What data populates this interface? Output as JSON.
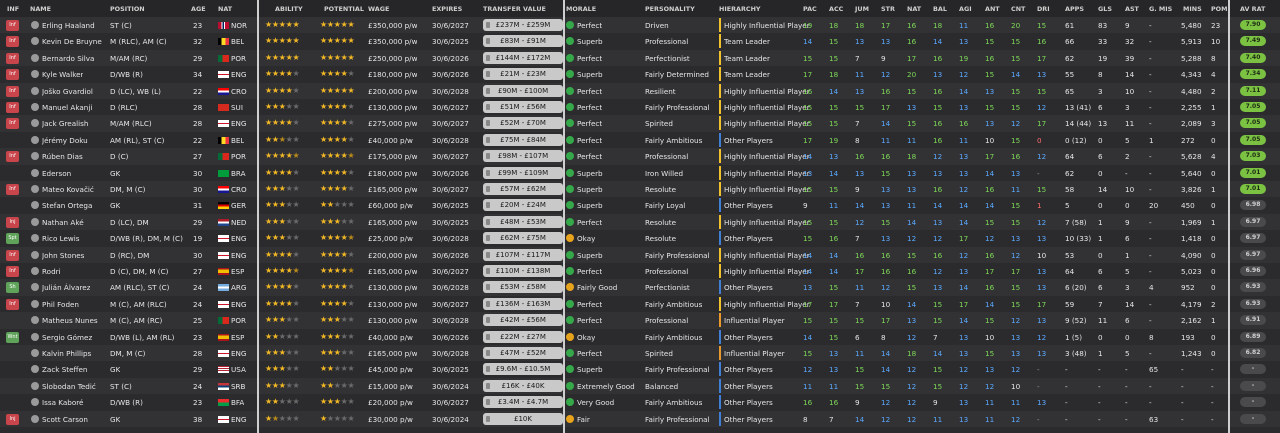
{
  "headers": {
    "inf": "INF",
    "name": "NAME",
    "position": "POSITION",
    "age": "AGE",
    "nat": "NAT",
    "ability": "ABILITY",
    "potential": "POTENTIAL",
    "wage": "WAGE",
    "expires": "EXPIRES",
    "transfer_value": "TRANSFER VALUE",
    "morale": "MORALE",
    "personality": "PERSONALITY",
    "hierarchy": "HIERARCHY",
    "pac": "PAC",
    "acc": "ACC",
    "jum": "JUM",
    "str": "STR",
    "nat2": "NAT",
    "bal": "BAL",
    "agi": "AGI",
    "ant": "ANT",
    "cnt": "CNT",
    "dri": "DRI",
    "apps": "APPS",
    "gls": "GLS",
    "ast": "AST",
    "gmis": "G. MIS",
    "mins": "MINS",
    "pom": "POM",
    "avrat": "AV RAT"
  },
  "players": [
    {
      "inf": "Inf",
      "name": "Erling Haaland",
      "position": "ST (C)",
      "age": "23",
      "nat": "NOR",
      "ability": 5,
      "potential": 5,
      "wage": "£350,000 p/w",
      "expires": "30/6/2027",
      "value": "£237M - £259M",
      "morale": "Perfect",
      "personality": "Driven",
      "hierarchy": "Highly Influential Player",
      "pac": "19",
      "acc": "18",
      "jum": "18",
      "str": "17",
      "nat2": "16",
      "bal": "18",
      "agi": "11",
      "ant": "16",
      "cnt": "20",
      "dri": "15",
      "apps": "61",
      "gls": "83",
      "ast": "9",
      "gmis": "-",
      "mins": "5,480",
      "pom": "23",
      "avrat": "7.90"
    },
    {
      "inf": "Inf",
      "name": "Kevin De Bruyne",
      "position": "M (RLC), AM (C)",
      "age": "32",
      "nat": "BEL",
      "ability": 5,
      "potential": 5,
      "wage": "£350,000 p/w",
      "expires": "30/6/2025",
      "value": "£83M - £91M",
      "morale": "Superb",
      "personality": "Professional",
      "hierarchy": "Team Leader",
      "pac": "14",
      "acc": "15",
      "jum": "13",
      "str": "13",
      "nat2": "16",
      "bal": "14",
      "agi": "13",
      "ant": "15",
      "cnt": "15",
      "dri": "16",
      "apps": "66",
      "gls": "33",
      "ast": "32",
      "gmis": "-",
      "mins": "5,913",
      "pom": "10",
      "avrat": "7.49"
    },
    {
      "inf": "Inf",
      "name": "Bernardo Silva",
      "position": "M/AM (RC)",
      "age": "29",
      "nat": "POR",
      "ability": 5,
      "potential": 5,
      "wage": "£250,000 p/w",
      "expires": "30/6/2026",
      "value": "£144M - £172M",
      "morale": "Perfect",
      "personality": "Perfectionist",
      "hierarchy": "Team Leader",
      "pac": "15",
      "acc": "15",
      "jum": "7",
      "str": "9",
      "nat2": "17",
      "bal": "16",
      "agi": "19",
      "ant": "16",
      "cnt": "15",
      "dri": "17",
      "apps": "62",
      "gls": "19",
      "ast": "39",
      "gmis": "-",
      "mins": "5,288",
      "pom": "8",
      "avrat": "7.40"
    },
    {
      "inf": "Inf",
      "name": "Kyle Walker",
      "position": "D/WB (R)",
      "age": "34",
      "nat": "ENG",
      "ability": 4,
      "potential": 4,
      "wage": "£180,000 p/w",
      "expires": "30/6/2026",
      "value": "£21M - £23M",
      "morale": "Superb",
      "personality": "Fairly Determined",
      "hierarchy": "Team Leader",
      "pac": "17",
      "acc": "18",
      "jum": "11",
      "str": "12",
      "nat2": "20",
      "bal": "13",
      "agi": "12",
      "ant": "15",
      "cnt": "14",
      "dri": "13",
      "apps": "55",
      "gls": "8",
      "ast": "14",
      "gmis": "-",
      "mins": "4,343",
      "pom": "4",
      "avrat": "7.34"
    },
    {
      "inf": "Inf",
      "name": "Joško Gvardiol",
      "position": "D (LC), WB (L)",
      "age": "22",
      "nat": "CRO",
      "ability": 4,
      "potential": 5,
      "wage": "£200,000 p/w",
      "expires": "30/6/2028",
      "value": "£90M - £100M",
      "morale": "Perfect",
      "personality": "Resilient",
      "hierarchy": "Highly Influential Player",
      "pac": "16",
      "acc": "14",
      "jum": "13",
      "str": "16",
      "nat2": "15",
      "bal": "16",
      "agi": "14",
      "ant": "13",
      "cnt": "15",
      "dri": "15",
      "apps": "65",
      "gls": "3",
      "ast": "10",
      "gmis": "-",
      "mins": "4,480",
      "pom": "2",
      "avrat": "7.11"
    },
    {
      "inf": "Inf",
      "name": "Manuel Akanji",
      "position": "D (RLC)",
      "age": "28",
      "nat": "SUI",
      "ability": 3,
      "potential": 4,
      "wage": "£130,000 p/w",
      "expires": "30/6/2027",
      "value": "£51M - £56M",
      "morale": "Perfect",
      "personality": "Fairly Professional",
      "hierarchy": "Highly Influential Player",
      "pac": "15",
      "acc": "15",
      "jum": "15",
      "str": "17",
      "nat2": "13",
      "bal": "15",
      "agi": "13",
      "ant": "15",
      "cnt": "15",
      "dri": "12",
      "apps": "13 (41)",
      "gls": "6",
      "ast": "3",
      "gmis": "-",
      "mins": "2,255",
      "pom": "1",
      "avrat": "7.05"
    },
    {
      "inf": "Inf",
      "name": "Jack Grealish",
      "position": "M/AM (RLC)",
      "age": "28",
      "nat": "ENG",
      "ability": 4,
      "potential": 4,
      "wage": "£275,000 p/w",
      "expires": "30/6/2027",
      "value": "£52M - £70M",
      "morale": "Perfect",
      "personality": "Spirited",
      "hierarchy": "Highly Influential Player",
      "pac": "15",
      "acc": "15",
      "jum": "7",
      "str": "14",
      "nat2": "15",
      "bal": "16",
      "agi": "16",
      "ant": "13",
      "cnt": "12",
      "dri": "17",
      "apps": "14 (44)",
      "gls": "13",
      "ast": "11",
      "gmis": "-",
      "mins": "2,089",
      "pom": "3",
      "avrat": "7.05"
    },
    {
      "inf": "",
      "name": "Jérémy Doku",
      "position": "AM (RL), ST (C)",
      "age": "22",
      "nat": "BEL",
      "ability": 2.5,
      "potential": 4,
      "wage": "£40,000 p/w",
      "expires": "30/6/2028",
      "value": "£75M - £84M",
      "morale": "Perfect",
      "personality": "Fairly Ambitious",
      "hierarchy": "Other Players",
      "pac": "17",
      "acc": "19",
      "jum": "8",
      "str": "11",
      "nat2": "11",
      "bal": "16",
      "agi": "11",
      "ant": "10",
      "cnt": "15",
      "dri": "0",
      "apps": "0 (12)",
      "gls": "0",
      "ast": "5",
      "gmis": "1",
      "mins": "272",
      "pom": "0",
      "avrat": "7.05"
    },
    {
      "inf": "Inf",
      "name": "Rúben Dias",
      "position": "D (C)",
      "age": "27",
      "nat": "POR",
      "ability": 4.5,
      "potential": 4.5,
      "wage": "£175,000 p/w",
      "expires": "30/6/2027",
      "value": "£98M - £107M",
      "morale": "Perfect",
      "personality": "Professional",
      "hierarchy": "Highly Influential Player",
      "pac": "14",
      "acc": "13",
      "jum": "16",
      "str": "16",
      "nat2": "18",
      "bal": "12",
      "agi": "13",
      "ant": "17",
      "cnt": "16",
      "dri": "12",
      "apps": "64",
      "gls": "6",
      "ast": "2",
      "gmis": "-",
      "mins": "5,628",
      "pom": "4",
      "avrat": "7.03"
    },
    {
      "inf": "",
      "name": "Ederson",
      "position": "GK",
      "age": "30",
      "nat": "BRA",
      "ability": 4,
      "potential": 4,
      "wage": "£180,000 p/w",
      "expires": "30/6/2026",
      "value": "£99M - £109M",
      "morale": "Superb",
      "personality": "Iron Willed",
      "hierarchy": "Highly Influential Player",
      "pac": "13",
      "acc": "14",
      "jum": "13",
      "str": "15",
      "nat2": "13",
      "bal": "13",
      "agi": "13",
      "ant": "14",
      "cnt": "13",
      "dri": "-",
      "apps": "62",
      "gls": "0",
      "ast": "-",
      "gmis": "-",
      "mins": "5,640",
      "pom": "0",
      "avrat": "7.01"
    },
    {
      "inf": "Inf",
      "name": "Mateo Kovačić",
      "position": "DM, M (C)",
      "age": "30",
      "nat": "CRO",
      "ability": 3,
      "potential": 4,
      "wage": "£165,000 p/w",
      "expires": "30/6/2027",
      "value": "£57M - £62M",
      "morale": "Superb",
      "personality": "Resolute",
      "hierarchy": "Highly Influential Player",
      "pac": "15",
      "acc": "15",
      "jum": "9",
      "str": "13",
      "nat2": "13",
      "bal": "16",
      "agi": "12",
      "ant": "16",
      "cnt": "11",
      "dri": "15",
      "apps": "58",
      "gls": "14",
      "ast": "10",
      "gmis": "-",
      "mins": "3,826",
      "pom": "1",
      "avrat": "7.01"
    },
    {
      "inf": "",
      "name": "Stefan Ortega",
      "position": "GK",
      "age": "31",
      "nat": "GER",
      "ability": 3,
      "potential": 2,
      "wage": "£60,000 p/w",
      "expires": "30/6/2025",
      "value": "£20M - £24M",
      "morale": "Superb",
      "personality": "Fairly Loyal",
      "hierarchy": "Other Players",
      "pac": "9",
      "acc": "11",
      "jum": "14",
      "str": "13",
      "nat2": "11",
      "bal": "14",
      "agi": "14",
      "ant": "14",
      "cnt": "15",
      "dri": "1",
      "apps": "5",
      "gls": "0",
      "ast": "0",
      "gmis": "20",
      "mins": "450",
      "pom": "0",
      "avrat": "6.98"
    },
    {
      "inf": "Inj",
      "name": "Nathan Aké",
      "position": "D (LC), DM",
      "age": "29",
      "nat": "NED",
      "ability": 3,
      "potential": 3,
      "wage": "£165,000 p/w",
      "expires": "30/6/2025",
      "value": "£48M - £53M",
      "morale": "Perfect",
      "personality": "Resolute",
      "hierarchy": "Highly Influential Player",
      "pac": "15",
      "acc": "15",
      "jum": "12",
      "str": "15",
      "nat2": "14",
      "bal": "13",
      "agi": "14",
      "ant": "15",
      "cnt": "15",
      "dri": "12",
      "apps": "7 (58)",
      "gls": "1",
      "ast": "9",
      "gmis": "-",
      "mins": "1,969",
      "pom": "1",
      "avrat": "6.97"
    },
    {
      "inf": "Spt",
      "name": "Rico Lewis",
      "position": "D/WB (R), DM, M (C)",
      "age": "19",
      "nat": "ENG",
      "ability": 3,
      "potential": 4.5,
      "wage": "£25,000 p/w",
      "expires": "30/6/2028",
      "value": "£62M - £75M",
      "morale": "Okay",
      "personality": "Resolute",
      "hierarchy": "Other Players",
      "pac": "15",
      "acc": "16",
      "jum": "7",
      "str": "13",
      "nat2": "12",
      "bal": "12",
      "agi": "17",
      "ant": "12",
      "cnt": "13",
      "dri": "13",
      "apps": "10 (33)",
      "gls": "1",
      "ast": "6",
      "gmis": "-",
      "mins": "1,418",
      "pom": "0",
      "avrat": "6.97"
    },
    {
      "inf": "Inf",
      "name": "John Stones",
      "position": "D (RC), DM",
      "age": "30",
      "nat": "ENG",
      "ability": 4,
      "potential": 4,
      "wage": "£200,000 p/w",
      "expires": "30/6/2026",
      "value": "£107M - £117M",
      "morale": "Superb",
      "personality": "Fairly Professional",
      "hierarchy": "Highly Influential Player",
      "pac": "14",
      "acc": "14",
      "jum": "16",
      "str": "16",
      "nat2": "15",
      "bal": "16",
      "agi": "12",
      "ant": "16",
      "cnt": "12",
      "dri": "10",
      "apps": "53",
      "gls": "0",
      "ast": "1",
      "gmis": "-",
      "mins": "4,090",
      "pom": "0",
      "avrat": "6.97"
    },
    {
      "inf": "Inf",
      "name": "Rodri",
      "position": "D (C), DM, M (C)",
      "age": "27",
      "nat": "ESP",
      "ability": 4.5,
      "potential": 4.5,
      "wage": "£165,000 p/w",
      "expires": "30/6/2027",
      "value": "£110M - £138M",
      "morale": "Perfect",
      "personality": "Professional",
      "hierarchy": "Highly Influential Player",
      "pac": "14",
      "acc": "14",
      "jum": "17",
      "str": "16",
      "nat2": "16",
      "bal": "12",
      "agi": "13",
      "ant": "17",
      "cnt": "17",
      "dri": "13",
      "apps": "64",
      "gls": "6",
      "ast": "5",
      "gmis": "-",
      "mins": "5,023",
      "pom": "0",
      "avrat": "6.96"
    },
    {
      "inf": "Sh",
      "name": "Julián Álvarez",
      "position": "AM (RLC), ST (C)",
      "age": "24",
      "nat": "ARG",
      "ability": 4,
      "potential": 4,
      "wage": "£130,000 p/w",
      "expires": "30/6/2028",
      "value": "£53M - £58M",
      "morale": "Fairly Good",
      "personality": "Perfectionist",
      "hierarchy": "Other Players",
      "pac": "13",
      "acc": "15",
      "jum": "11",
      "str": "12",
      "nat2": "15",
      "bal": "13",
      "agi": "14",
      "ant": "16",
      "cnt": "15",
      "dri": "13",
      "apps": "6 (20)",
      "gls": "6",
      "ast": "3",
      "gmis": "4",
      "mins": "952",
      "pom": "0",
      "avrat": "6.93"
    },
    {
      "inf": "Inf",
      "name": "Phil Foden",
      "position": "M (C), AM (RLC)",
      "age": "24",
      "nat": "ENG",
      "ability": 4,
      "potential": 4,
      "wage": "£130,000 p/w",
      "expires": "30/6/2027",
      "value": "£136M - £163M",
      "morale": "Perfect",
      "personality": "Fairly Ambitious",
      "hierarchy": "Highly Influential Player",
      "pac": "17",
      "acc": "17",
      "jum": "7",
      "str": "10",
      "nat2": "14",
      "bal": "15",
      "agi": "17",
      "ant": "14",
      "cnt": "15",
      "dri": "17",
      "apps": "59",
      "gls": "7",
      "ast": "14",
      "gmis": "-",
      "mins": "4,179",
      "pom": "2",
      "avrat": "6.93"
    },
    {
      "inf": "",
      "name": "Matheus Nunes",
      "position": "M (C), AM (RC)",
      "age": "25",
      "nat": "POR",
      "ability": 3,
      "potential": 3,
      "wage": "£130,000 p/w",
      "expires": "30/6/2028",
      "value": "£42M - £56M",
      "morale": "Perfect",
      "personality": "Professional",
      "hierarchy": "Influential Player",
      "pac": "15",
      "acc": "15",
      "jum": "15",
      "str": "17",
      "nat2": "13",
      "bal": "15",
      "agi": "14",
      "ant": "15",
      "cnt": "12",
      "dri": "13",
      "apps": "9 (52)",
      "gls": "11",
      "ast": "6",
      "gmis": "-",
      "mins": "2,162",
      "pom": "1",
      "avrat": "6.91"
    },
    {
      "inf": "Wnt",
      "name": "Sergio Gómez",
      "position": "D/WB (L), AM (RL)",
      "age": "23",
      "nat": "ESP",
      "ability": 2,
      "potential": 3,
      "wage": "£40,000 p/w",
      "expires": "30/6/2026",
      "value": "£22M - £27M",
      "morale": "Okay",
      "personality": "Fairly Ambitious",
      "hierarchy": "Other Players",
      "pac": "14",
      "acc": "15",
      "jum": "6",
      "str": "8",
      "nat2": "12",
      "bal": "7",
      "agi": "13",
      "ant": "10",
      "cnt": "13",
      "dri": "12",
      "apps": "1 (5)",
      "gls": "0",
      "ast": "0",
      "gmis": "8",
      "mins": "193",
      "pom": "0",
      "avrat": "6.89"
    },
    {
      "inf": "",
      "name": "Kalvin Phillips",
      "position": "DM, M (C)",
      "age": "28",
      "nat": "ENG",
      "ability": 3,
      "potential": 3,
      "wage": "£165,000 p/w",
      "expires": "30/6/2028",
      "value": "£47M - £52M",
      "morale": "Perfect",
      "personality": "Spirited",
      "hierarchy": "Influential Player",
      "pac": "15",
      "acc": "13",
      "jum": "11",
      "str": "14",
      "nat2": "18",
      "bal": "14",
      "agi": "13",
      "ant": "15",
      "cnt": "13",
      "dri": "13",
      "apps": "3 (48)",
      "gls": "1",
      "ast": "5",
      "gmis": "-",
      "mins": "1,243",
      "pom": "0",
      "avrat": "6.82"
    },
    {
      "inf": "",
      "name": "Zack Steffen",
      "position": "GK",
      "age": "29",
      "nat": "USA",
      "ability": 3,
      "potential": 2,
      "wage": "£45,000 p/w",
      "expires": "30/6/2025",
      "value": "£9.6M - £10.5M",
      "morale": "Superb",
      "personality": "Fairly Professional",
      "hierarchy": "Other Players",
      "pac": "12",
      "acc": "13",
      "jum": "15",
      "str": "14",
      "nat2": "12",
      "bal": "15",
      "agi": "12",
      "ant": "13",
      "cnt": "12",
      "dri": "-",
      "apps": "-",
      "gls": "-",
      "ast": "-",
      "gmis": "65",
      "mins": "-",
      "pom": "-",
      "avrat": "-"
    },
    {
      "inf": "",
      "name": "Slobodan Tedić",
      "position": "ST (C)",
      "age": "24",
      "nat": "SRB",
      "ability": 3,
      "potential": 2,
      "wage": "£15,000 p/w",
      "expires": "30/6/2024",
      "value": "£16K - £40K",
      "morale": "Extremely Good",
      "personality": "Balanced",
      "hierarchy": "Other Players",
      "pac": "11",
      "acc": "11",
      "jum": "15",
      "str": "15",
      "nat2": "12",
      "bal": "15",
      "agi": "12",
      "ant": "12",
      "cnt": "10",
      "dri": "-",
      "apps": "-",
      "gls": "-",
      "ast": "-",
      "gmis": "-",
      "mins": "-",
      "pom": "-",
      "avrat": "-"
    },
    {
      "inf": "",
      "name": "Issa Kaboré",
      "position": "D/WB (R)",
      "age": "23",
      "nat": "BFA",
      "ability": 2,
      "potential": 3,
      "wage": "£20,000 p/w",
      "expires": "30/6/2027",
      "value": "£3.4M - £4.7M",
      "morale": "Very Good",
      "personality": "Fairly Ambitious",
      "hierarchy": "Other Players",
      "pac": "16",
      "acc": "16",
      "jum": "9",
      "str": "12",
      "nat2": "12",
      "bal": "9",
      "agi": "13",
      "ant": "11",
      "cnt": "11",
      "dri": "13",
      "apps": "-",
      "gls": "-",
      "ast": "-",
      "gmis": "-",
      "mins": "-",
      "pom": "-",
      "avrat": "-"
    },
    {
      "inf": "Inj",
      "name": "Scott Carson",
      "position": "GK",
      "age": "38",
      "nat": "ENG",
      "ability": 1.5,
      "potential": 1,
      "wage": "£30,000 p/w",
      "expires": "30/6/2024",
      "value": "£10K",
      "morale": "Fair",
      "personality": "Fairly Professional",
      "hierarchy": "Other Players",
      "pac": "8",
      "acc": "7",
      "jum": "14",
      "str": "12",
      "nat2": "12",
      "bal": "11",
      "agi": "13",
      "ant": "11",
      "cnt": "12",
      "dri": "-",
      "apps": "-",
      "gls": "-",
      "ast": "-",
      "gmis": "63",
      "mins": "-",
      "pom": "-",
      "avrat": "-"
    }
  ]
}
